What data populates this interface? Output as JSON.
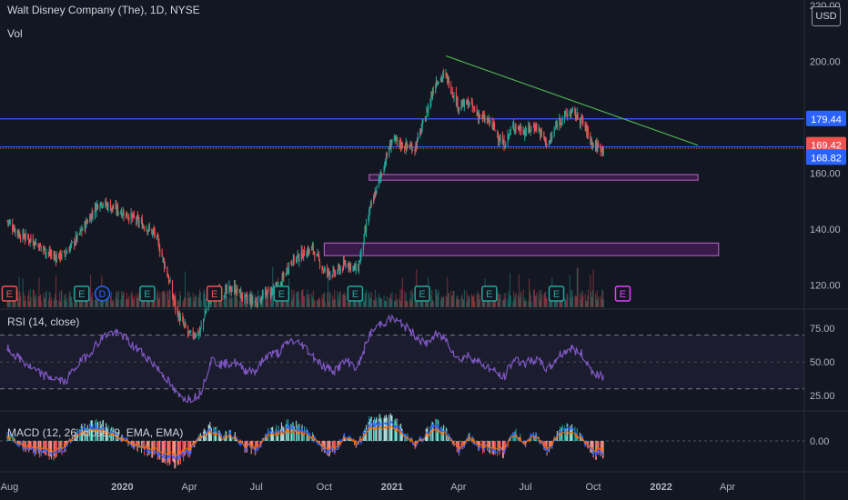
{
  "header": {
    "title": "Walt Disney Company (The), 1D, NYSE",
    "vol_label": "Vol",
    "currency": "USD"
  },
  "panes": {
    "rsi_label": "RSI (14, close)",
    "macd_label": "MACD (12, 26, close, 9, EMA, EMA)"
  },
  "colors": {
    "background": "#131722",
    "up": "#26a69a",
    "down": "#ef5350",
    "hline": "#2962ff",
    "trendline": "#4caf50",
    "zone": "#9c27b0",
    "rsi": "#7e57c2",
    "macd": "#2962ff",
    "signal": "#ff6d00",
    "earnings_red": "#ef5350",
    "earnings_green": "#26a69a",
    "earnings_blue": "#2962ff",
    "earnings_upcoming": "#e040fb"
  },
  "chart_data": [
    {
      "type": "candlestick",
      "title": "Walt Disney Company (The), 1D, NYSE",
      "x_ticks": [
        "Aug",
        "2020",
        "Apr",
        "Jul",
        "Oct",
        "2021",
        "Apr",
        "Jul",
        "Oct",
        "2022",
        "Apr"
      ],
      "y_ticks": [
        120,
        140,
        160,
        180,
        200,
        220
      ],
      "y_tick_labels": [
        "120.00",
        "140.00",
        "160.00",
        "",
        "200.00",
        "220.00"
      ],
      "ylim": [
        112,
        222
      ],
      "series": [
        {
          "x": [
            "2019-07-29",
            "2019-08-15",
            "2019-09-01",
            "2019-09-15",
            "2019-10-01",
            "2019-10-15",
            "2019-11-01",
            "2019-11-15",
            "2019-12-01",
            "2019-12-15",
            "2020-01-01",
            "2020-01-15",
            "2020-02-01",
            "2020-02-15",
            "2020-03-01",
            "2020-03-15",
            "2020-04-01",
            "2020-04-15",
            "2020-05-01",
            "2020-05-15",
            "2020-06-01",
            "2020-06-15",
            "2020-07-01",
            "2020-07-15",
            "2020-08-01",
            "2020-08-15",
            "2020-09-01",
            "2020-09-15",
            "2020-10-01",
            "2020-10-15",
            "2020-11-01",
            "2020-11-15",
            "2020-12-01",
            "2020-12-15",
            "2021-01-01",
            "2021-01-15",
            "2021-02-01",
            "2021-02-15",
            "2021-03-01",
            "2021-03-15",
            "2021-04-01",
            "2021-04-15",
            "2021-05-01",
            "2021-05-15",
            "2021-06-01",
            "2021-06-15",
            "2021-07-01",
            "2021-07-15",
            "2021-08-01",
            "2021-08-15",
            "2021-09-01",
            "2021-09-15",
            "2021-10-01",
            "2021-10-15"
          ],
          "close": [
            143,
            138,
            136,
            133,
            130,
            131,
            137,
            143,
            150,
            148,
            146,
            144,
            141,
            138,
            125,
            110,
            102,
            103,
            118,
            117,
            119,
            115,
            114,
            117,
            119,
            128,
            131,
            133,
            125,
            124,
            128,
            125,
            146,
            158,
            172,
            170,
            169,
            180,
            193,
            195,
            184,
            185,
            180,
            178,
            170,
            177,
            175,
            177,
            170,
            179,
            182,
            179,
            170,
            168.82
          ]
        }
      ],
      "horizontal_lines": [
        179.44,
        169.42
      ],
      "last_price": 168.82,
      "price_labels": [
        "179.44",
        "169.42",
        "168.82"
      ],
      "trendline": {
        "from": [
          "2021-03-15",
          202
        ],
        "to": [
          "2022-02-20",
          170
        ]
      },
      "zones": [
        {
          "from_date": "2020-12-01",
          "to_date": "2022-02-20",
          "low": 157.5,
          "high": 159.5
        },
        {
          "from_date": "2020-10-01",
          "to_date": "2022-03-20",
          "low": 130.5,
          "high": 135
        }
      ],
      "earnings_markers": [
        {
          "date": "2019-08-01",
          "label": "E",
          "kind": "red"
        },
        {
          "date": "2019-11-07",
          "label": "E",
          "kind": "green"
        },
        {
          "date": "2019-12-05",
          "label": "D",
          "kind": "blue"
        },
        {
          "date": "2020-02-04",
          "label": "E",
          "kind": "green"
        },
        {
          "date": "2020-05-05",
          "label": "E",
          "kind": "red"
        },
        {
          "date": "2020-08-04",
          "label": "E",
          "kind": "green"
        },
        {
          "date": "2020-11-12",
          "label": "E",
          "kind": "green"
        },
        {
          "date": "2021-02-11",
          "label": "E",
          "kind": "green"
        },
        {
          "date": "2021-05-13",
          "label": "E",
          "kind": "green"
        },
        {
          "date": "2021-08-12",
          "label": "E",
          "kind": "green"
        },
        {
          "date": "2021-11-10",
          "label": "E",
          "kind": "upcoming"
        }
      ]
    },
    {
      "type": "line",
      "title": "RSI (14, close)",
      "y_ticks": [
        25,
        50,
        75
      ],
      "y_tick_labels": [
        "25.00",
        "50.00",
        "75.00"
      ],
      "ylim": [
        15,
        88
      ],
      "bands": [
        30,
        70
      ],
      "series": [
        {
          "values": [
            60,
            52,
            45,
            40,
            38,
            35,
            48,
            55,
            66,
            72,
            70,
            62,
            55,
            47,
            38,
            25,
            23,
            26,
            52,
            48,
            50,
            44,
            44,
            55,
            57,
            66,
            63,
            55,
            46,
            44,
            51,
            45,
            70,
            78,
            82,
            78,
            70,
            63,
            70,
            67,
            52,
            55,
            49,
            45,
            38,
            52,
            49,
            52,
            44,
            55,
            60,
            56,
            42,
            40
          ]
        }
      ]
    },
    {
      "type": "bar",
      "title": "MACD (12, 26, close, 9, EMA, EMA)",
      "y_ticks": [
        0
      ],
      "y_tick_labels": [
        "0.00"
      ],
      "ylim": [
        -1,
        1
      ],
      "series": [
        {
          "name": "histogram",
          "values": [
            0.3,
            -0.2,
            -0.4,
            -0.5,
            -0.6,
            -0.3,
            0.4,
            0.6,
            0.7,
            0.5,
            0.1,
            -0.2,
            -0.4,
            -0.6,
            -0.8,
            -0.9,
            -0.5,
            0.2,
            0.6,
            0.2,
            0.3,
            -0.3,
            -0.4,
            0.3,
            0.5,
            0.7,
            0.5,
            0.2,
            -0.5,
            -0.4,
            0.3,
            -0.2,
            0.8,
            0.9,
            0.9,
            0.5,
            -0.2,
            0.3,
            0.7,
            0.4,
            -0.5,
            0.2,
            -0.3,
            -0.4,
            -0.5,
            0.4,
            -0.1,
            0.3,
            -0.5,
            0.5,
            0.6,
            0.1,
            -0.6,
            -0.5
          ]
        }
      ]
    }
  ]
}
